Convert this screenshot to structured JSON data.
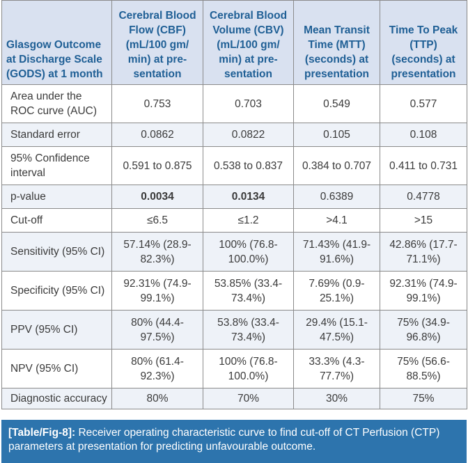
{
  "header": {
    "col0": "Glasgow Outcome at Discharge Scale (GODS) at 1 month",
    "col1": "Cerebral Blood Flow (CBF) (mL/100 gm/ min) at pre-sentation",
    "col2": "Cerebral Blood Volume (CBV) (mL/100 gm/ min) at pre-sentation",
    "col3": "Mean Transit Time (MTT) (seconds) at presentation",
    "col4": "Time To Peak (TTP) (seconds) at presentation"
  },
  "rows": [
    {
      "label": "Area under the ROC curve (AUC)",
      "cbf": "0.753",
      "cbv": "0.703",
      "mtt": "0.549",
      "ttp": "0.577"
    },
    {
      "label": "Standard error",
      "cbf": "0.0862",
      "cbv": "0.0822",
      "mtt": "0.105",
      "ttp": "0.108"
    },
    {
      "label": "95% Confidence interval",
      "cbf": "0.591 to 0.875",
      "cbv": "0.538 to 0.837",
      "mtt": "0.384 to 0.707",
      "ttp": "0.411 to 0.731"
    },
    {
      "label": "p-value",
      "cbf": "0.0034",
      "cbv": "0.0134",
      "mtt": "0.6389",
      "ttp": "0.4778"
    },
    {
      "label": "Cut-off",
      "cbf": "≤6.5",
      "cbv": "≤1.2",
      "mtt": ">4.1",
      "ttp": ">15"
    },
    {
      "label": "Sensitivity (95% CI)",
      "cbf": "57.14% (28.9-82.3%)",
      "cbv": "100% (76.8-100.0%)",
      "mtt": "71.43% (41.9-91.6%)",
      "ttp": "42.86% (17.7-71.1%)"
    },
    {
      "label": "Specificity (95% CI)",
      "cbf": "92.31% (74.9-99.1%)",
      "cbv": "53.85% (33.4-73.4%)",
      "mtt": "7.69% (0.9-25.1%)",
      "ttp": "92.31% (74.9-99.1%)"
    },
    {
      "label": "PPV (95% CI)",
      "cbf": "80% (44.4-97.5%)",
      "cbv": "53.8% (33.4-73.4%)",
      "mtt": "29.4% (15.1-47.5%)",
      "ttp": "75% (34.9-96.8%)"
    },
    {
      "label": "NPV (95% CI)",
      "cbf": "80% (61.4-92.3%)",
      "cbv": "100% (76.8-100.0%)",
      "mtt": "33.3% (4.3-77.7%)",
      "ttp": "75% (56.6-88.5%)"
    },
    {
      "label": "Diagnostic accuracy",
      "cbf": "80%",
      "cbv": "70%",
      "mtt": "30%",
      "ttp": "75%"
    }
  ],
  "caption": {
    "tag": "[Table/Fig-8]:",
    "text": " Receiver operating characteristic curve to find cut-off of CT Perfusion (CTP) parameters at presentation for predicting unfavourable outcome."
  },
  "colors": {
    "header_bg": "#d9e1f0",
    "header_text": "#1f5f95",
    "caption_bg": "#2d74ad"
  }
}
